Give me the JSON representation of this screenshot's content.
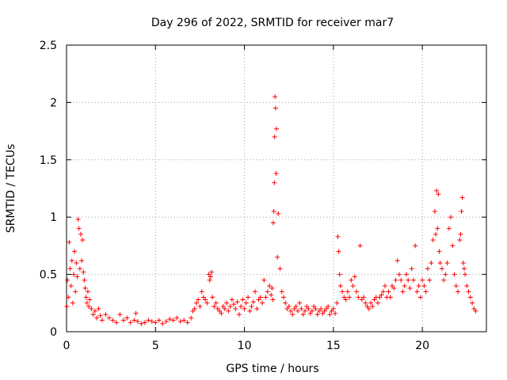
{
  "chart_data": {
    "type": "scatter",
    "title": "Day 296 of 2022, SRMTID for receiver mar7",
    "xlabel": "GPS time / hours",
    "ylabel": "SRMTID / TECUs",
    "xlim": [
      0,
      23.6
    ],
    "ylim": [
      0,
      2.5
    ],
    "xticks": [
      0,
      5,
      10,
      15,
      20
    ],
    "yticks": [
      0,
      0.5,
      1,
      1.5,
      2,
      2.5
    ],
    "xtick_labels": [
      "0",
      "5",
      "10",
      "15",
      "20"
    ],
    "ytick_labels": [
      "0",
      "0.5",
      "1",
      "1.5",
      "2",
      "2.5"
    ],
    "grid": true,
    "marker": "+",
    "series": [
      {
        "name": "SRMTID",
        "color": "#ff0000",
        "x": [
          0.02,
          0.05,
          0.1,
          0.15,
          0.2,
          0.25,
          0.3,
          0.35,
          0.4,
          0.45,
          0.5,
          0.55,
          0.6,
          0.65,
          0.7,
          0.75,
          0.8,
          0.85,
          0.9,
          0.95,
          1.0,
          1.05,
          1.1,
          1.15,
          1.2,
          1.25,
          1.3,
          1.4,
          1.5,
          1.6,
          1.7,
          1.8,
          1.9,
          2.0,
          2.2,
          2.4,
          2.6,
          2.8,
          3.0,
          3.2,
          3.4,
          3.6,
          3.8,
          3.9,
          4.0,
          4.2,
          4.4,
          4.6,
          4.8,
          5.0,
          5.2,
          5.4,
          5.6,
          5.8,
          6.0,
          6.2,
          6.4,
          6.6,
          6.8,
          7.0,
          7.1,
          7.2,
          7.3,
          7.4,
          7.5,
          7.6,
          7.7,
          7.8,
          7.9,
          8.0,
          8.05,
          8.1,
          8.15,
          8.2,
          8.3,
          8.4,
          8.5,
          8.6,
          8.7,
          8.8,
          8.9,
          9.0,
          9.1,
          9.2,
          9.3,
          9.4,
          9.5,
          9.6,
          9.7,
          9.8,
          9.9,
          10.0,
          10.1,
          10.2,
          10.3,
          10.4,
          10.5,
          10.6,
          10.7,
          10.8,
          10.9,
          11.0,
          11.1,
          11.2,
          11.3,
          11.4,
          11.5,
          11.55,
          11.6,
          11.62,
          11.65,
          11.68,
          11.7,
          11.72,
          11.75,
          11.78,
          11.8,
          11.85,
          11.9,
          12.0,
          12.1,
          12.2,
          12.3,
          12.4,
          12.5,
          12.6,
          12.7,
          12.8,
          12.9,
          13.0,
          13.1,
          13.2,
          13.3,
          13.4,
          13.5,
          13.6,
          13.7,
          13.8,
          13.9,
          14.0,
          14.1,
          14.2,
          14.3,
          14.4,
          14.5,
          14.6,
          14.7,
          14.8,
          14.9,
          15.0,
          15.1,
          15.2,
          15.25,
          15.3,
          15.35,
          15.4,
          15.5,
          15.6,
          15.7,
          15.8,
          15.9,
          16.0,
          16.1,
          16.2,
          16.3,
          16.4,
          16.5,
          16.6,
          16.7,
          16.8,
          16.9,
          17.0,
          17.1,
          17.2,
          17.3,
          17.4,
          17.5,
          17.6,
          17.7,
          17.8,
          17.9,
          18.0,
          18.1,
          18.2,
          18.3,
          18.4,
          18.5,
          18.6,
          18.7,
          18.8,
          18.9,
          19.0,
          19.1,
          19.2,
          19.3,
          19.4,
          19.5,
          19.6,
          19.7,
          19.8,
          19.9,
          20.0,
          20.1,
          20.2,
          20.3,
          20.4,
          20.5,
          20.6,
          20.7,
          20.75,
          20.8,
          20.85,
          20.9,
          20.95,
          21.0,
          21.1,
          21.2,
          21.3,
          21.4,
          21.5,
          21.6,
          21.7,
          21.8,
          21.9,
          22.0,
          22.1,
          22.15,
          22.2,
          22.25,
          22.3,
          22.35,
          22.4,
          22.5,
          22.6,
          22.7,
          22.8,
          22.9,
          23.0
        ],
        "y": [
          0.22,
          0.45,
          0.3,
          0.78,
          0.55,
          0.4,
          0.62,
          0.25,
          0.5,
          0.7,
          0.35,
          0.6,
          0.48,
          0.98,
          0.9,
          0.55,
          0.85,
          0.62,
          0.8,
          0.52,
          0.45,
          0.38,
          0.3,
          0.25,
          0.35,
          0.22,
          0.28,
          0.2,
          0.15,
          0.18,
          0.12,
          0.2,
          0.14,
          0.1,
          0.15,
          0.12,
          0.1,
          0.08,
          0.15,
          0.1,
          0.12,
          0.08,
          0.1,
          0.16,
          0.09,
          0.07,
          0.08,
          0.1,
          0.09,
          0.08,
          0.1,
          0.07,
          0.09,
          0.11,
          0.1,
          0.12,
          0.09,
          0.1,
          0.08,
          0.12,
          0.18,
          0.2,
          0.25,
          0.28,
          0.22,
          0.35,
          0.3,
          0.28,
          0.25,
          0.5,
          0.45,
          0.48,
          0.52,
          0.3,
          0.22,
          0.25,
          0.2,
          0.18,
          0.16,
          0.22,
          0.2,
          0.25,
          0.18,
          0.22,
          0.28,
          0.24,
          0.2,
          0.26,
          0.15,
          0.22,
          0.28,
          0.2,
          0.25,
          0.3,
          0.18,
          0.22,
          0.26,
          0.35,
          0.2,
          0.28,
          0.3,
          0.25,
          0.45,
          0.3,
          0.35,
          0.4,
          0.32,
          0.38,
          0.28,
          0.95,
          1.05,
          1.3,
          1.7,
          2.05,
          1.95,
          1.38,
          1.77,
          0.65,
          1.03,
          0.55,
          0.35,
          0.3,
          0.25,
          0.2,
          0.22,
          0.18,
          0.15,
          0.2,
          0.22,
          0.18,
          0.25,
          0.2,
          0.15,
          0.18,
          0.22,
          0.2,
          0.16,
          0.18,
          0.22,
          0.2,
          0.15,
          0.18,
          0.2,
          0.16,
          0.18,
          0.2,
          0.22,
          0.15,
          0.18,
          0.2,
          0.16,
          0.25,
          0.83,
          0.7,
          0.5,
          0.4,
          0.35,
          0.3,
          0.28,
          0.35,
          0.3,
          0.45,
          0.4,
          0.48,
          0.35,
          0.3,
          0.75,
          0.28,
          0.3,
          0.25,
          0.22,
          0.2,
          0.25,
          0.22,
          0.28,
          0.3,
          0.25,
          0.3,
          0.32,
          0.35,
          0.4,
          0.3,
          0.35,
          0.3,
          0.4,
          0.38,
          0.45,
          0.62,
          0.5,
          0.45,
          0.35,
          0.4,
          0.5,
          0.45,
          0.38,
          0.55,
          0.45,
          0.75,
          0.35,
          0.4,
          0.3,
          0.45,
          0.4,
          0.35,
          0.55,
          0.45,
          0.6,
          0.8,
          1.05,
          0.85,
          1.23,
          0.9,
          1.2,
          0.7,
          0.6,
          0.55,
          0.45,
          0.5,
          0.6,
          0.9,
          1.0,
          0.75,
          0.5,
          0.4,
          0.35,
          0.8,
          0.85,
          1.05,
          1.17,
          0.6,
          0.55,
          0.5,
          0.4,
          0.35,
          0.3,
          0.25,
          0.2,
          0.18
        ]
      }
    ]
  }
}
